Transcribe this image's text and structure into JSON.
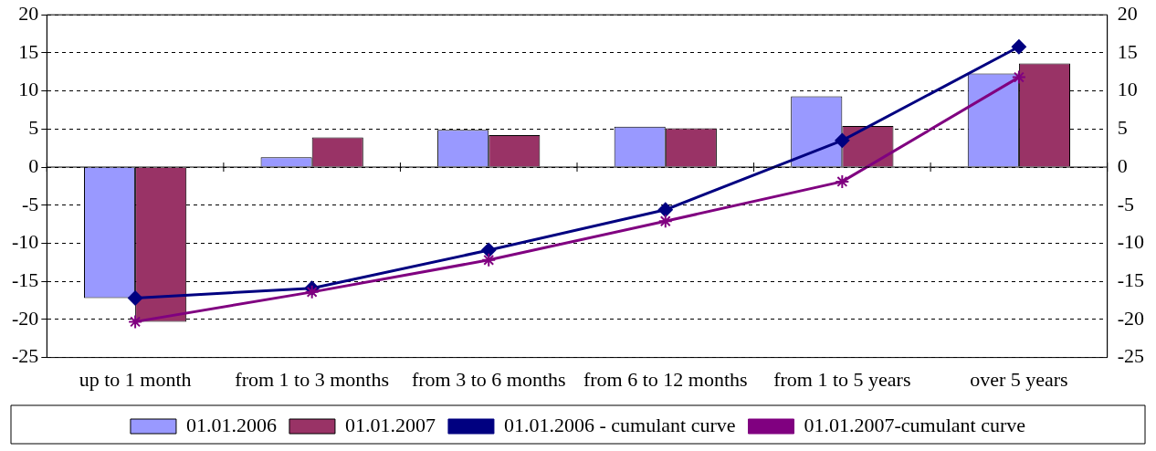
{
  "chart_data": {
    "type": "bar",
    "categories": [
      "up to 1 month",
      "from 1 to 3 months",
      "from 3 to 6 months",
      "from 6 to 12 months",
      "from 1 to 5 years",
      "over 5 years"
    ],
    "series": [
      {
        "name": "01.01.2006",
        "color": "#9999ff",
        "values": [
          -17.2,
          1.3,
          4.9,
          5.3,
          9.3,
          12.3
        ]
      },
      {
        "name": "01.01.2007",
        "color": "#993366",
        "values": [
          -20.3,
          3.9,
          4.2,
          5.1,
          5.4,
          13.6
        ]
      },
      {
        "name": "01.01.2006 - cumulant curve",
        "type": "line",
        "color": "#000080",
        "marker": "diamond",
        "values": [
          -17.2,
          -15.9,
          -10.9,
          -5.6,
          3.5,
          15.8
        ]
      },
      {
        "name": "01.01.2007-cumulant curve",
        "type": "line",
        "color": "#800080",
        "marker": "cross",
        "values": [
          -20.3,
          -16.4,
          -12.2,
          -7.1,
          -1.9,
          11.8
        ]
      }
    ],
    "ylim": [
      -25,
      20
    ],
    "yticks": [
      -25,
      -20,
      -15,
      -10,
      -5,
      0,
      5,
      10,
      15,
      20
    ],
    "y2lim": [
      -25,
      20
    ],
    "y2ticks": [
      -25,
      -20,
      -15,
      -10,
      -5,
      0,
      5,
      10,
      15,
      20
    ],
    "grid": "y",
    "legend": "bottom"
  }
}
